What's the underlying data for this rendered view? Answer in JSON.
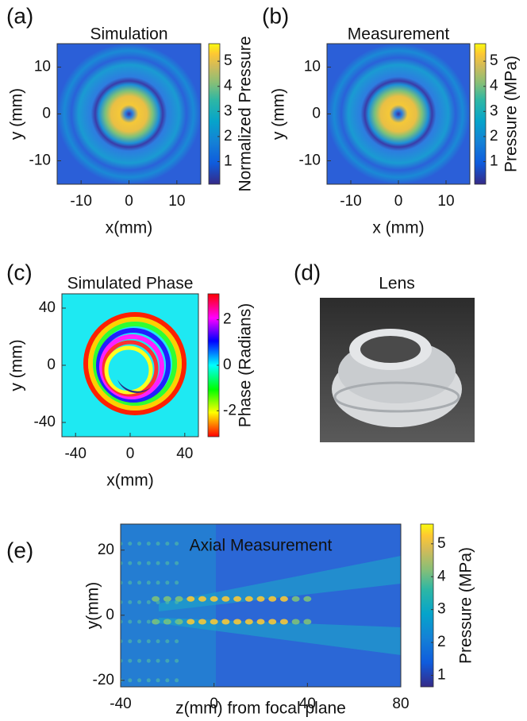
{
  "chart_data": [
    {
      "type": "heatmap",
      "panel_label": "(a)",
      "title": "Simulation",
      "xlabel": "x(mm)",
      "ylabel": "y (mm)",
      "xlim": [
        -15,
        15
      ],
      "ylim": [
        -15,
        15
      ],
      "xticks": [
        -10,
        0,
        10
      ],
      "yticks": [
        -10,
        0,
        10
      ],
      "colormap": "parula",
      "colorbar": {
        "label": "Normalized Pressure",
        "lim": [
          0.1,
          5.7
        ],
        "ticks": [
          1,
          2,
          3,
          4,
          5
        ]
      }
    },
    {
      "type": "heatmap",
      "panel_label": "(b)",
      "title": "Measurement",
      "xlabel": "x (mm)",
      "ylabel": "y (mm)",
      "xlim": [
        -15,
        15
      ],
      "ylim": [
        -15,
        15
      ],
      "xticks": [
        -10,
        0,
        10
      ],
      "yticks": [
        -10,
        0,
        10
      ],
      "colormap": "parula",
      "colorbar": {
        "label": "Pressure (MPa)",
        "lim": [
          0.1,
          5.7
        ],
        "ticks": [
          1,
          2,
          3,
          4,
          5
        ]
      }
    },
    {
      "type": "heatmap",
      "panel_label": "(c)",
      "title": "Simulated Phase",
      "xlabel": "x(mm)",
      "ylabel": "y (mm)",
      "xlim": [
        -50,
        50
      ],
      "ylim": [
        -50,
        50
      ],
      "xticks": [
        -40,
        0,
        40
      ],
      "yticks": [
        -40,
        0,
        40
      ],
      "colormap": "hsv",
      "colorbar": {
        "label": "Phase (Radians)",
        "lim": [
          -3.14,
          3.14
        ],
        "ticks": [
          -2,
          0,
          2
        ]
      }
    },
    {
      "type": "heatmap",
      "panel_label": "(e)",
      "title": "Axial Measurement",
      "xlabel": "z(mm) from focal plane",
      "ylabel": "y(mm)",
      "xlim": [
        -40,
        80
      ],
      "ylim": [
        -22,
        28
      ],
      "xticks": [
        -40,
        0,
        40,
        80
      ],
      "yticks": [
        -20,
        0,
        20
      ],
      "colormap": "parula",
      "colorbar": {
        "label": "Pressure (MPa)",
        "lim": [
          0.65,
          5.6
        ],
        "ticks": [
          1,
          2,
          3,
          4,
          5
        ]
      }
    }
  ],
  "photo": {
    "panel_label": "(d)",
    "title": "Lens"
  }
}
